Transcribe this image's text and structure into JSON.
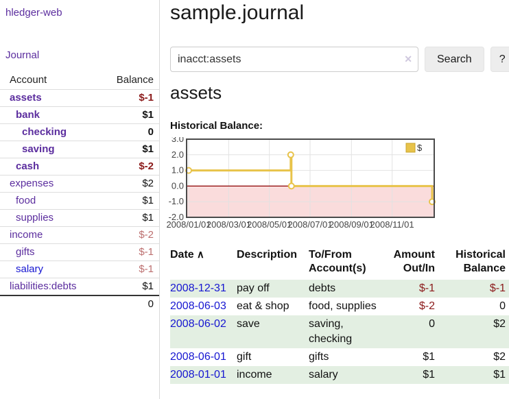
{
  "palette": {
    "link_purple": "#5b2d9e",
    "link_blue": "#1616d1",
    "negative_strong": "#8b1a1a",
    "negative_muted": "#bc6f6f",
    "row_green": "#e3efe2",
    "chart_line": "#e8c34a",
    "chart_negative_region": "#fadcdc",
    "chart_zero_line": "#8b0000"
  },
  "sidebar": {
    "app_title": "hledger-web",
    "nav": {
      "journal": "Journal"
    },
    "accounts_table": {
      "headers": {
        "account": "Account",
        "balance": "Balance"
      },
      "rows": [
        {
          "name": "assets",
          "balance": "$-1",
          "level": 0,
          "bold": true,
          "color": "purple"
        },
        {
          "name": "bank",
          "balance": "$1",
          "level": 1,
          "bold": true,
          "color": "purple"
        },
        {
          "name": "checking",
          "balance": "0",
          "level": 2,
          "bold": true,
          "color": "purple"
        },
        {
          "name": "saving",
          "balance": "$1",
          "level": 2,
          "bold": true,
          "color": "purple"
        },
        {
          "name": "cash",
          "balance": "$-2",
          "level": 1,
          "bold": true,
          "color": "purple"
        },
        {
          "name": "expenses",
          "balance": "$2",
          "level": 0,
          "bold": false,
          "color": "purple"
        },
        {
          "name": "food",
          "balance": "$1",
          "level": 1,
          "bold": false,
          "color": "purple"
        },
        {
          "name": "supplies",
          "balance": "$1",
          "level": 1,
          "bold": false,
          "color": "purple"
        },
        {
          "name": "income",
          "balance": "$-2",
          "level": 0,
          "bold": false,
          "color": "purple"
        },
        {
          "name": "gifts",
          "balance": "$-1",
          "level": 1,
          "bold": false,
          "color": "purple"
        },
        {
          "name": "salary",
          "balance": "$-1",
          "level": 1,
          "bold": false,
          "color": "blue"
        },
        {
          "name": "liabilities:debts",
          "balance": "$1",
          "level": 0,
          "bold": false,
          "color": "purple"
        }
      ],
      "total": "0"
    }
  },
  "main": {
    "title": "sample.journal",
    "search": {
      "value": "inacct:assets",
      "clear_icon": "✕",
      "button": "Search",
      "help_button": "?"
    },
    "account_heading": "assets",
    "chart_label": "Historical Balance:"
  },
  "chart_data": {
    "type": "line",
    "step": true,
    "title": "Historical Balance:",
    "series": [
      {
        "name": "$",
        "points": [
          [
            "2008-01-01",
            1
          ],
          [
            "2008-06-02",
            2
          ],
          [
            "2008-06-03",
            0
          ],
          [
            "2008-12-31",
            -1
          ]
        ]
      }
    ],
    "ylim": [
      -2,
      3
    ],
    "yticks": [
      "3.0",
      "2.0",
      "1.0",
      "0.0",
      "-1.0",
      "-2.0"
    ],
    "xticks": [
      {
        "date": "2008-01-01",
        "label": "2008/01/01"
      },
      {
        "date": "2008-03-01",
        "label": "2008/03/01"
      },
      {
        "date": "2008-05-01",
        "label": "2008/05/01"
      },
      {
        "date": "2008-07-01",
        "label": "2008/07/01"
      },
      {
        "date": "2008-09-01",
        "label": "2008/09/01"
      },
      {
        "date": "2008-11-01",
        "label": "2008/11/01"
      }
    ],
    "legend": {
      "label": "$",
      "position": "top-right"
    },
    "grid": true,
    "negative_region_shaded": true
  },
  "register_table": {
    "sort_icon": "∧",
    "headers": [
      {
        "lines": [
          "Date"
        ],
        "align": "left",
        "sort": "asc"
      },
      {
        "lines": [
          "Description"
        ],
        "align": "left"
      },
      {
        "lines": [
          "To/From",
          "Account(s)"
        ],
        "align": "left"
      },
      {
        "lines": [
          "Amount",
          "Out/In"
        ],
        "align": "right"
      },
      {
        "lines": [
          "Historical",
          "Balance"
        ],
        "align": "right"
      }
    ],
    "rows": [
      {
        "date": "2008-12-31",
        "description": "pay off",
        "accounts": [
          "debts"
        ],
        "amount": "$-1",
        "balance": "$-1"
      },
      {
        "date": "2008-06-03",
        "description": "eat & shop",
        "accounts": [
          "food, supplies"
        ],
        "amount": "$-2",
        "balance": "0"
      },
      {
        "date": "2008-06-02",
        "description": "save",
        "accounts": [
          "saving,",
          "checking"
        ],
        "amount": "0",
        "balance": "$2"
      },
      {
        "date": "2008-06-01",
        "description": "gift",
        "accounts": [
          "gifts"
        ],
        "amount": "$1",
        "balance": "$2"
      },
      {
        "date": "2008-01-01",
        "description": "income",
        "accounts": [
          "salary"
        ],
        "amount": "$1",
        "balance": "$1"
      }
    ]
  }
}
